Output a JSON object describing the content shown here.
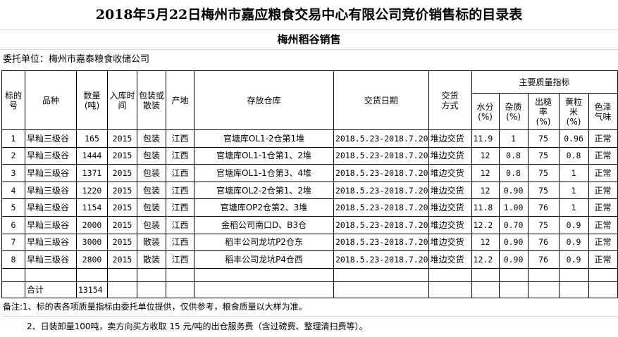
{
  "title": "2018年5月22日梅州市嘉应粮食交易中心有限公司竞价销售标的目录表",
  "subtitle": "梅州稻谷销售",
  "entrust": "委托单位：梅州市嘉泰粮食收储公司",
  "headers": {
    "no": "标的号",
    "variety": "品种",
    "qty": "数量(吨)",
    "year": "入库时间",
    "pack": "包装或散装",
    "origin": "产地",
    "warehouse": "存放仓库",
    "date": "交货日期",
    "method": "交货方式",
    "quality": "主要质量指标",
    "moisture": "水分(%)",
    "impurity": "杂质(%)",
    "yield": "出糙率(%)",
    "yellow": "黄粒米(%)",
    "color": "色泽气味"
  },
  "rows": [
    {
      "no": "1",
      "variety": "早籼三级谷",
      "qty": "165",
      "year": "2015",
      "pack": "包装",
      "origin": "江西",
      "warehouse": "官塘库OL1-2仓第1堆",
      "date": "2018.5.23-2018.7.20",
      "method": "堆边交货",
      "moisture": "11.9",
      "impurity": "1",
      "yield": "75",
      "yellow": "0.96",
      "color": "正常"
    },
    {
      "no": "2",
      "variety": "早籼三级谷",
      "qty": "1444",
      "year": "2015",
      "pack": "包装",
      "origin": "江西",
      "warehouse": "官塘库OL1-1仓第1、2堆",
      "date": "2018.5.23-2018.7.20",
      "method": "堆边交货",
      "moisture": "12",
      "impurity": "0.8",
      "yield": "75",
      "yellow": "0.8",
      "color": "正常"
    },
    {
      "no": "3",
      "variety": "早籼三级谷",
      "qty": "1371",
      "year": "2015",
      "pack": "包装",
      "origin": "江西",
      "warehouse": "官塘库OL1-1仓第3、4堆",
      "date": "2018.5.23-2018.7.20",
      "method": "堆边交货",
      "moisture": "12",
      "impurity": "0.8",
      "yield": "75",
      "yellow": "1",
      "color": "正常"
    },
    {
      "no": "4",
      "variety": "早籼三级谷",
      "qty": "1220",
      "year": "2015",
      "pack": "包装",
      "origin": "江西",
      "warehouse": "官塘库OL2-2仓第1、2堆",
      "date": "2018.5.23-2018.7.20",
      "method": "堆边交货",
      "moisture": "12",
      "impurity": "0.90",
      "yield": "75",
      "yellow": "1",
      "color": "正常"
    },
    {
      "no": "5",
      "variety": "早籼三级谷",
      "qty": "1154",
      "year": "2015",
      "pack": "包装",
      "origin": "江西",
      "warehouse": "官塘库OP2仓第2、3堆",
      "date": "2018.5.23-2018.7.20",
      "method": "堆边交货",
      "moisture": "11.8",
      "impurity": "1.00",
      "yield": "76",
      "yellow": "1",
      "color": "正常"
    },
    {
      "no": "6",
      "variety": "早籼三级谷",
      "qty": "2000",
      "year": "2015",
      "pack": "包装",
      "origin": "江西",
      "warehouse": "金稻公司南口D、B3仓",
      "date": "2018.5.23-2018.7.20",
      "method": "堆边交货",
      "moisture": "12.2",
      "impurity": "0.70",
      "yield": "75",
      "yellow": "0.9",
      "color": "正常"
    },
    {
      "no": "7",
      "variety": "早籼三级谷",
      "qty": "3000",
      "year": "2015",
      "pack": "散装",
      "origin": "江西",
      "warehouse": "稻丰公司龙坑P2仓东",
      "date": "2018.5.23-2018.7.20",
      "method": "堆边交货",
      "moisture": "12",
      "impurity": "0.90",
      "yield": "76",
      "yellow": "0.9",
      "color": "正常"
    },
    {
      "no": "8",
      "variety": "早籼三级谷",
      "qty": "2800",
      "year": "2015",
      "pack": "散装",
      "origin": "江西",
      "warehouse": "稻丰公司龙坑P4仓西",
      "date": "2018.5.23-2018.7.20",
      "method": "堆边交货",
      "moisture": "12.2",
      "impurity": "0.90",
      "yield": "76",
      "yellow": "0.9",
      "color": "正常"
    }
  ],
  "total": {
    "label": "合计",
    "qty": "13154"
  },
  "notes": [
    "备注:1、标的表各项质量指标由委托单位提供，仅供参考，粮食质量以大样为准。",
    "2、日装卸量100吨，卖方向买方收取 15 元/吨的出仓服务费（含过磅费、整理清扫费等）。"
  ]
}
